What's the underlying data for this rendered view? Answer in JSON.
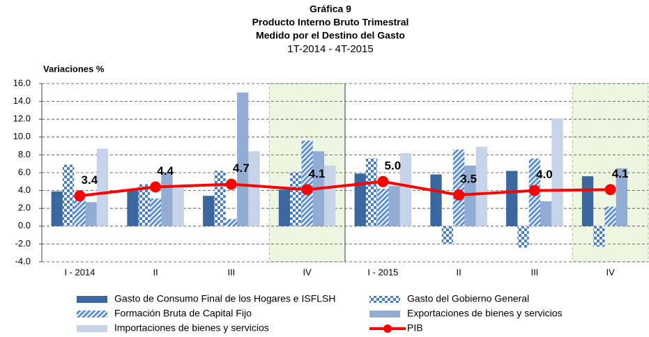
{
  "chart_data": {
    "type": "bar-line",
    "title": "Gráfica 9",
    "title_lines": [
      "Producto Interno Bruto Trimestral",
      "Medido por el Destino del Gasto"
    ],
    "subtitle": "1T-2014 - 4T-2015",
    "y_label": "Variaciones %",
    "categories": [
      "I - 2014",
      "II",
      "III",
      "IV",
      "I - 2015",
      "II",
      "III",
      "IV"
    ],
    "highlight": [
      3,
      7
    ],
    "series": [
      {
        "name": "Gasto de Consumo Final de los Hogares e ISFLSH",
        "color": "#3a679f",
        "pattern": "solid",
        "values": [
          3.9,
          4.0,
          3.4,
          4.1,
          5.9,
          5.8,
          6.2,
          5.6
        ]
      },
      {
        "name": "Gasto del Gobierno General",
        "color": "#4a7fc4",
        "pattern": "checker",
        "values": [
          6.9,
          4.7,
          6.2,
          6.1,
          7.6,
          -2.0,
          -2.4,
          -2.3
        ]
      },
      {
        "name": "Formación Bruta de Capital Fijo",
        "color": "#5b8ed6",
        "pattern": "hatch",
        "values": [
          3.0,
          3.1,
          0.8,
          9.6,
          4.2,
          8.6,
          7.6,
          2.2
        ]
      },
      {
        "name": "Exportaciones de bienes y servicios",
        "color": "#92acd3",
        "pattern": "solid",
        "values": [
          2.7,
          6.0,
          15.0,
          8.4,
          4.5,
          6.8,
          2.8,
          6.5
        ]
      },
      {
        "name": "Importaciones de bienes y servicios",
        "color": "#c6d3e8",
        "pattern": "solid",
        "values": [
          8.7,
          4.3,
          8.4,
          6.8,
          8.2,
          8.9,
          12.1,
          null
        ]
      },
      {
        "name": "PIB",
        "color": "#ff0000",
        "type": "line",
        "values": [
          3.4,
          4.4,
          4.7,
          4.1,
          5.0,
          3.5,
          4.0,
          4.1
        ],
        "value_labels": [
          "3.4",
          "4.4",
          "4.7",
          "4.1",
          "5.0",
          "3.5",
          "4.0",
          "4.1"
        ]
      }
    ],
    "ylim": [
      -4,
      16
    ],
    "yticks": [
      {
        "value": -4,
        "label": "-4.0"
      },
      {
        "value": -2,
        "label": "-2.0"
      },
      {
        "value": 0,
        "label": "0.0"
      },
      {
        "value": 2,
        "label": "2.0"
      },
      {
        "value": 4,
        "label": "4.0"
      },
      {
        "value": 6,
        "label": "6.0"
      },
      {
        "value": 8,
        "label": "8.0"
      },
      {
        "value": 10,
        "label": "10.0"
      },
      {
        "value": 12,
        "label": "12.0"
      },
      {
        "value": 14,
        "label": "14.0"
      },
      {
        "value": 16,
        "label": "16.0"
      }
    ],
    "grid": true
  }
}
